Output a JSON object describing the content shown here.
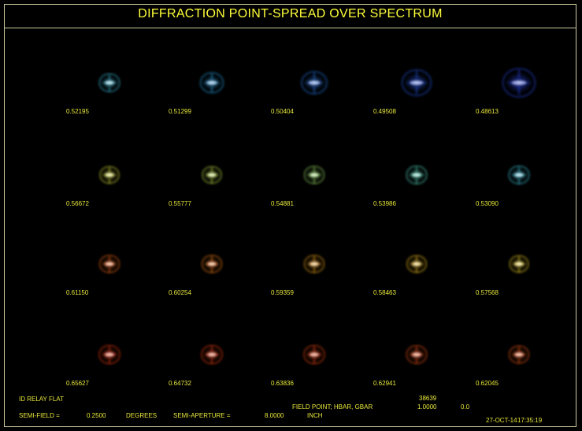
{
  "title": "DIFFRACTION POINT-SPREAD OVER SPECTRUM",
  "rows": [
    {
      "cells": [
        {
          "wavelength": "0.52195",
          "color": "#3fc6e8",
          "size": 0.8
        },
        {
          "wavelength": "0.51299",
          "color": "#2aa6ec",
          "size": 0.9
        },
        {
          "wavelength": "0.50404",
          "color": "#2a7cf0",
          "size": 1.0
        },
        {
          "wavelength": "0.49508",
          "color": "#2a5cf2",
          "size": 1.15
        },
        {
          "wavelength": "0.48613",
          "color": "#2a48f2",
          "size": 1.28
        }
      ]
    },
    {
      "cells": [
        {
          "wavelength": "0.56672",
          "color": "#e6ea3a",
          "size": 0.75
        },
        {
          "wavelength": "0.55777",
          "color": "#c8ea4a",
          "size": 0.75
        },
        {
          "wavelength": "0.54881",
          "color": "#a2ea6a",
          "size": 0.78
        },
        {
          "wavelength": "0.53986",
          "color": "#5ce6c8",
          "size": 0.8
        },
        {
          "wavelength": "0.53090",
          "color": "#44d0ea",
          "size": 0.8
        }
      ]
    },
    {
      "cells": [
        {
          "wavelength": "0.61150",
          "color": "#ff6a14",
          "size": 0.78
        },
        {
          "wavelength": "0.60254",
          "color": "#ff8018",
          "size": 0.78
        },
        {
          "wavelength": "0.59359",
          "color": "#ffae1c",
          "size": 0.78
        },
        {
          "wavelength": "0.58463",
          "color": "#ffcc22",
          "size": 0.76
        },
        {
          "wavelength": "0.57568",
          "color": "#ffe02c",
          "size": 0.74
        }
      ]
    },
    {
      "cells": [
        {
          "wavelength": "0.65627",
          "color": "#ff3a10",
          "size": 0.82
        },
        {
          "wavelength": "0.64732",
          "color": "#ff4212",
          "size": 0.82
        },
        {
          "wavelength": "0.63836",
          "color": "#ff4a12",
          "size": 0.82
        },
        {
          "wavelength": "0.62941",
          "color": "#ff5414",
          "size": 0.8
        },
        {
          "wavelength": "0.62045",
          "color": "#ff5c14",
          "size": 0.78
        }
      ]
    }
  ],
  "footer": {
    "lens_name": "ID RELAY FLAT",
    "semi_field_label": "SEMI-FIELD =",
    "semi_field_value": "0.2500",
    "semi_field_unit": "DEGREES",
    "semi_aperture_label": "SEMI-APERTURE =",
    "semi_aperture_value": "8.0000",
    "semi_aperture_unit": "INCH",
    "field_point_label": "FIELD POINT; HBAR, GBAR",
    "field_point_id": "38639",
    "hbar": "1.0000",
    "gbar": "0.0",
    "date": "27-OCT-14",
    "time": "17:35:19"
  }
}
